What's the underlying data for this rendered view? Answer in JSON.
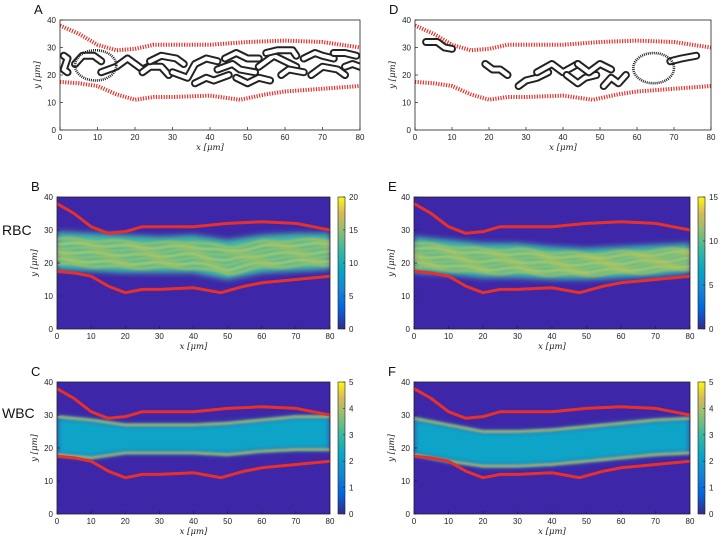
{
  "figure": {
    "row_labels": {
      "rbc": "RBC",
      "wbc": "WBC"
    }
  },
  "chart_data": [
    {
      "id": "A",
      "type": "scatter",
      "letter": "A",
      "kind": "cells",
      "xlabel": "x [μm]",
      "ylabel": "y [μm]",
      "xlim": [
        0,
        80
      ],
      "ylim": [
        0,
        40
      ],
      "xticks": [
        "0",
        "10",
        "20",
        "30",
        "40",
        "50",
        "60",
        "70",
        "80"
      ],
      "yticks": [
        "0",
        "10",
        "20",
        "30",
        "40"
      ],
      "wall_color": "#e8302a",
      "upper_wall": [
        [
          0,
          38
        ],
        [
          5,
          35
        ],
        [
          10,
          31
        ],
        [
          15,
          29
        ],
        [
          20,
          29.5
        ],
        [
          25,
          31
        ],
        [
          30,
          31
        ],
        [
          40,
          31
        ],
        [
          50,
          32
        ],
        [
          60,
          32.5
        ],
        [
          70,
          32
        ],
        [
          75,
          31
        ],
        [
          80,
          30
        ]
      ],
      "lower_wall": [
        [
          0,
          17.5
        ],
        [
          5,
          17
        ],
        [
          10,
          16
        ],
        [
          15,
          13
        ],
        [
          20,
          11
        ],
        [
          25,
          12
        ],
        [
          30,
          12
        ],
        [
          40,
          12.5
        ],
        [
          48,
          11
        ],
        [
          55,
          13
        ],
        [
          60,
          14
        ],
        [
          70,
          15
        ],
        [
          80,
          16
        ]
      ],
      "wbc": [
        {
          "cx": 9.5,
          "cy": 23.5,
          "r": 5.5
        }
      ],
      "rbc": [
        [
          [
            1,
            27
          ],
          [
            2,
            26
          ],
          [
            1,
            22
          ],
          [
            2,
            21
          ]
        ],
        [
          [
            4,
            24
          ],
          [
            6,
            27
          ],
          [
            9,
            27
          ],
          [
            11,
            25
          ]
        ],
        [
          [
            11,
            21
          ],
          [
            15,
            23
          ],
          [
            18,
            26
          ],
          [
            22,
            22
          ],
          [
            25,
            24
          ]
        ],
        [
          [
            22,
            21
          ],
          [
            24,
            23
          ],
          [
            27,
            23
          ],
          [
            29,
            20
          ]
        ],
        [
          [
            24,
            25
          ],
          [
            27,
            27
          ],
          [
            31,
            26
          ],
          [
            33,
            24
          ]
        ],
        [
          [
            30,
            21
          ],
          [
            34,
            19
          ],
          [
            36,
            24
          ],
          [
            39,
            26
          ],
          [
            42,
            25
          ]
        ],
        [
          [
            36,
            17
          ],
          [
            39,
            19
          ],
          [
            41,
            18
          ],
          [
            45,
            20
          ]
        ],
        [
          [
            42,
            22
          ],
          [
            46,
            24
          ],
          [
            48,
            22
          ],
          [
            52,
            21
          ]
        ],
        [
          [
            44,
            26
          ],
          [
            47,
            28
          ],
          [
            50,
            26
          ],
          [
            53,
            26
          ]
        ],
        [
          [
            47,
            19
          ],
          [
            50,
            17
          ],
          [
            53,
            19
          ],
          [
            56,
            18
          ]
        ],
        [
          [
            53,
            23
          ],
          [
            57,
            27
          ],
          [
            60,
            25
          ],
          [
            63,
            23
          ]
        ],
        [
          [
            55,
            28
          ],
          [
            58,
            29
          ],
          [
            62,
            29
          ],
          [
            63,
            27
          ]
        ],
        [
          [
            59,
            20
          ],
          [
            61,
            22
          ],
          [
            65,
            21
          ]
        ],
        [
          [
            65,
            26
          ],
          [
            68,
            28
          ],
          [
            70,
            27
          ],
          [
            73,
            26
          ]
        ],
        [
          [
            67,
            20
          ],
          [
            70,
            23
          ],
          [
            74,
            22
          ],
          [
            76,
            20
          ]
        ],
        [
          [
            73,
            28
          ],
          [
            76,
            28
          ],
          [
            79,
            27
          ]
        ],
        [
          [
            76,
            23
          ],
          [
            78,
            24
          ],
          [
            80,
            23
          ]
        ]
      ]
    },
    {
      "id": "D",
      "type": "scatter",
      "letter": "D",
      "kind": "cells",
      "xlabel": "x [μm]",
      "ylabel": "y [μm]",
      "xlim": [
        0,
        80
      ],
      "ylim": [
        0,
        40
      ],
      "xticks": [
        "0",
        "10",
        "20",
        "30",
        "40",
        "50",
        "60",
        "70",
        "80"
      ],
      "yticks": [
        "0",
        "10",
        "20",
        "30",
        "40"
      ],
      "wall_color": "#e8302a",
      "upper_wall": [
        [
          0,
          38
        ],
        [
          5,
          35
        ],
        [
          10,
          31
        ],
        [
          15,
          29
        ],
        [
          20,
          29.5
        ],
        [
          25,
          31
        ],
        [
          30,
          31
        ],
        [
          40,
          31
        ],
        [
          50,
          32
        ],
        [
          60,
          32.5
        ],
        [
          70,
          32
        ],
        [
          75,
          31
        ],
        [
          80,
          30
        ]
      ],
      "lower_wall": [
        [
          0,
          17.5
        ],
        [
          5,
          17
        ],
        [
          10,
          16
        ],
        [
          15,
          13
        ],
        [
          20,
          11
        ],
        [
          25,
          12
        ],
        [
          30,
          12
        ],
        [
          40,
          12.5
        ],
        [
          48,
          11
        ],
        [
          55,
          13
        ],
        [
          60,
          14
        ],
        [
          70,
          15
        ],
        [
          80,
          16
        ]
      ],
      "wbc": [
        {
          "cx": 64.5,
          "cy": 22.5,
          "r": 5.5
        }
      ],
      "rbc": [
        [
          [
            3,
            32
          ],
          [
            6,
            32
          ],
          [
            8,
            30
          ],
          [
            10,
            29.5
          ]
        ],
        [
          [
            19,
            24
          ],
          [
            21,
            22
          ],
          [
            23,
            22
          ],
          [
            25,
            20
          ]
        ],
        [
          [
            28,
            16
          ],
          [
            30,
            18
          ],
          [
            33,
            19
          ],
          [
            36,
            21
          ]
        ],
        [
          [
            33,
            21
          ],
          [
            37,
            24
          ],
          [
            40,
            21
          ],
          [
            44,
            24
          ]
        ],
        [
          [
            41,
            20
          ],
          [
            44,
            17
          ],
          [
            46,
            19
          ],
          [
            49,
            20
          ]
        ],
        [
          [
            44,
            24
          ],
          [
            47,
            21
          ],
          [
            50,
            24
          ],
          [
            53,
            22
          ]
        ],
        [
          [
            51,
            16
          ],
          [
            53,
            19
          ],
          [
            55,
            17
          ],
          [
            57,
            20
          ]
        ],
        [
          [
            69,
            25
          ],
          [
            72,
            26
          ],
          [
            76,
            27
          ]
        ]
      ]
    },
    {
      "id": "B",
      "type": "heatmap",
      "letter": "B",
      "kind": "rbc",
      "xlabel": "x [μm]",
      "ylabel": "y [μm]",
      "xlim": [
        0,
        80
      ],
      "ylim": [
        0,
        40
      ],
      "xticks": [
        "0",
        "10",
        "20",
        "30",
        "40",
        "50",
        "60",
        "70",
        "80"
      ],
      "yticks": [
        "0",
        "10",
        "20",
        "30",
        "40"
      ],
      "colorbar": {
        "min": 0,
        "max": 20,
        "ticks": [
          "0",
          "5",
          "10",
          "15",
          "20"
        ]
      },
      "band": [
        [
          0,
          18,
          29.5
        ],
        [
          10,
          17.5,
          29
        ],
        [
          20,
          17,
          28.5
        ],
        [
          30,
          17,
          28
        ],
        [
          40,
          17,
          28.5
        ],
        [
          50,
          15,
          27
        ],
        [
          60,
          17,
          28.5
        ],
        [
          70,
          17.5,
          29
        ],
        [
          80,
          18,
          29
        ]
      ]
    },
    {
      "id": "E",
      "type": "heatmap",
      "letter": "E",
      "kind": "rbc",
      "xlabel": "x [μm]",
      "ylabel": "y [μm]",
      "xlim": [
        0,
        80
      ],
      "ylim": [
        0,
        40
      ],
      "xticks": [
        "0",
        "10",
        "20",
        "30",
        "40",
        "50",
        "60",
        "70",
        "80"
      ],
      "yticks": [
        "0",
        "10",
        "20",
        "30",
        "40"
      ],
      "colorbar": {
        "min": 0,
        "max": 15,
        "ticks": [
          "0",
          "5",
          "10",
          "15"
        ]
      },
      "band": [
        [
          0,
          17,
          28
        ],
        [
          10,
          16.5,
          27
        ],
        [
          20,
          15.5,
          26
        ],
        [
          30,
          15.5,
          26
        ],
        [
          40,
          15,
          25
        ],
        [
          50,
          15,
          24.5
        ],
        [
          60,
          15.5,
          25
        ],
        [
          70,
          16,
          25.5
        ],
        [
          80,
          17,
          26
        ]
      ]
    },
    {
      "id": "C",
      "type": "heatmap",
      "letter": "C",
      "kind": "wbc",
      "xlabel": "x [μm]",
      "ylabel": "y [μm]",
      "xlim": [
        0,
        80
      ],
      "ylim": [
        0,
        40
      ],
      "xticks": [
        "0",
        "10",
        "20",
        "30",
        "40",
        "50",
        "60",
        "70",
        "80"
      ],
      "yticks": [
        "0",
        "10",
        "20",
        "30",
        "40"
      ],
      "colorbar": {
        "min": 0,
        "max": 5,
        "ticks": [
          "0",
          "1",
          "2",
          "3",
          "4",
          "5"
        ]
      },
      "band": [
        [
          0,
          18,
          29.5
        ],
        [
          10,
          17,
          28.5
        ],
        [
          20,
          18.5,
          27
        ],
        [
          30,
          18.5,
          27
        ],
        [
          40,
          18.5,
          27
        ],
        [
          50,
          18,
          27.5
        ],
        [
          60,
          19,
          28.5
        ],
        [
          70,
          19.5,
          29.5
        ],
        [
          80,
          19.5,
          29.5
        ]
      ]
    },
    {
      "id": "F",
      "type": "heatmap",
      "letter": "F",
      "kind": "wbc",
      "xlabel": "x [μm]",
      "ylabel": "y [μm]",
      "xlim": [
        0,
        80
      ],
      "ylim": [
        0,
        40
      ],
      "xticks": [
        "0",
        "10",
        "20",
        "30",
        "40",
        "50",
        "60",
        "70",
        "80"
      ],
      "yticks": [
        "0",
        "10",
        "20",
        "30",
        "40"
      ],
      "colorbar": {
        "min": 0,
        "max": 5,
        "ticks": [
          "0",
          "1",
          "2",
          "3",
          "4",
          "5"
        ]
      },
      "band": [
        [
          0,
          18,
          29
        ],
        [
          10,
          16,
          27
        ],
        [
          20,
          14.5,
          25
        ],
        [
          30,
          14.5,
          25
        ],
        [
          40,
          15,
          25.5
        ],
        [
          50,
          16,
          26.5
        ],
        [
          60,
          17,
          27.5
        ],
        [
          70,
          18,
          28.5
        ],
        [
          80,
          18.5,
          29
        ]
      ]
    }
  ]
}
